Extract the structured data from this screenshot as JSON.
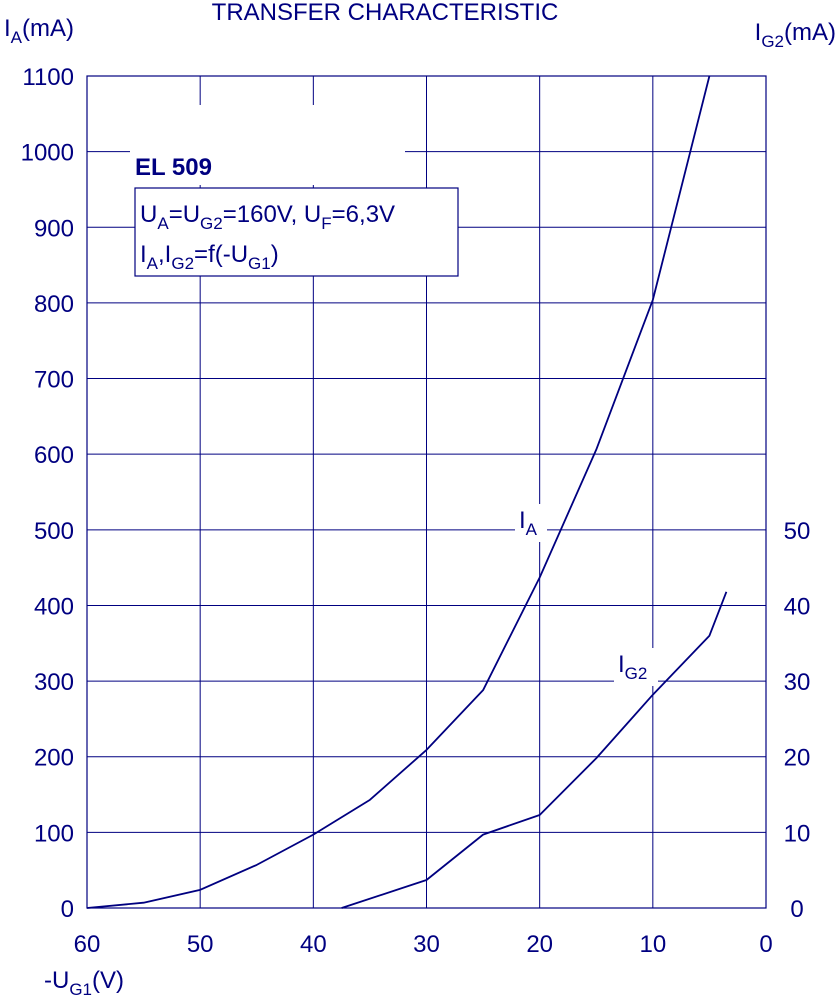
{
  "chart_data": {
    "type": "line",
    "title": "TRANSFER  CHARACTERISTIC",
    "ylabel": [
      "I",
      "A",
      "(mA)"
    ],
    "y2label": [
      "I",
      "G2",
      "(mA)"
    ],
    "xlabel": [
      "-U",
      "G1",
      "(V)"
    ],
    "heading": "EL 509",
    "conditions": [
      [
        "U",
        "A",
        "=U",
        "G2",
        "=160V, U",
        "F",
        "=6,3V"
      ],
      [
        "I",
        "A",
        ",I",
        "G2",
        "=f(-U",
        "G1",
        ")"
      ]
    ],
    "xlim": [
      60,
      0
    ],
    "xticks": [
      60,
      50,
      40,
      30,
      20,
      10,
      0
    ],
    "ylim": [
      0,
      1100
    ],
    "yticks": [
      0,
      100,
      200,
      300,
      400,
      500,
      600,
      700,
      800,
      900,
      1000,
      1100
    ],
    "y2lim": [
      0,
      110
    ],
    "y2ticks": [
      0,
      10,
      20,
      30,
      40,
      50
    ],
    "grid": true,
    "series": [
      {
        "name": [
          "I",
          "A"
        ],
        "color": "#000080",
        "x": [
          60,
          55,
          50,
          45,
          40,
          35,
          30,
          25,
          20,
          15,
          10,
          5
        ],
        "values": [
          0,
          7,
          24,
          57,
          97,
          143,
          209,
          288,
          437,
          606,
          804,
          1100
        ]
      },
      {
        "name": [
          "I",
          "G2"
        ],
        "color": "#000080",
        "axis": "y2",
        "x": [
          37.5,
          30,
          25,
          20,
          15,
          10,
          5,
          3.5
        ],
        "values": [
          0,
          3.7,
          9.7,
          12.3,
          19.8,
          28.2,
          36,
          41.8
        ]
      }
    ]
  }
}
